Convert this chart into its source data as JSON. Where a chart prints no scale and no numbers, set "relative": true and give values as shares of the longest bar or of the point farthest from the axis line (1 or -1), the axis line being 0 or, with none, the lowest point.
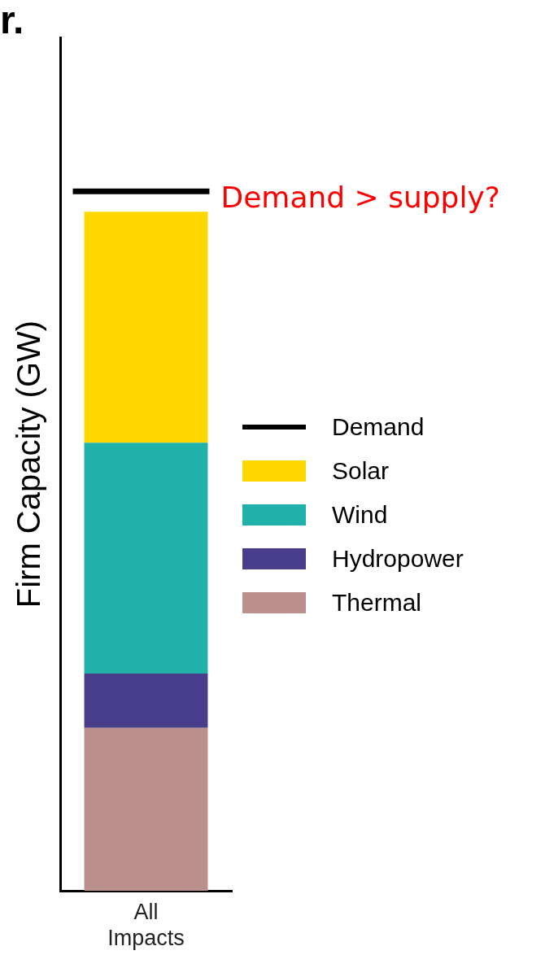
{
  "chart_data": {
    "type": "bar",
    "title": "r.",
    "ylabel": "Firm Capacity (GW)",
    "categories": [
      [
        "All",
        "Impacts"
      ]
    ],
    "stacked": true,
    "relative": true,
    "legend": "right",
    "series": [
      {
        "name": "Thermal",
        "color": "#bb8f8b",
        "values": [
          0.24
        ]
      },
      {
        "name": "Hydropower",
        "color": "#483d8b",
        "values": [
          0.08
        ]
      },
      {
        "name": "Wind",
        "color": "#20b2aa",
        "values": [
          0.34
        ]
      },
      {
        "name": "Solar",
        "color": "#ffd700",
        "values": [
          0.34
        ]
      }
    ],
    "ref_lines": [
      {
        "axis": "y",
        "value": 1.03,
        "label": "Demand",
        "color": "#000000"
      }
    ],
    "annotations": [
      "Demand > supply?"
    ]
  }
}
